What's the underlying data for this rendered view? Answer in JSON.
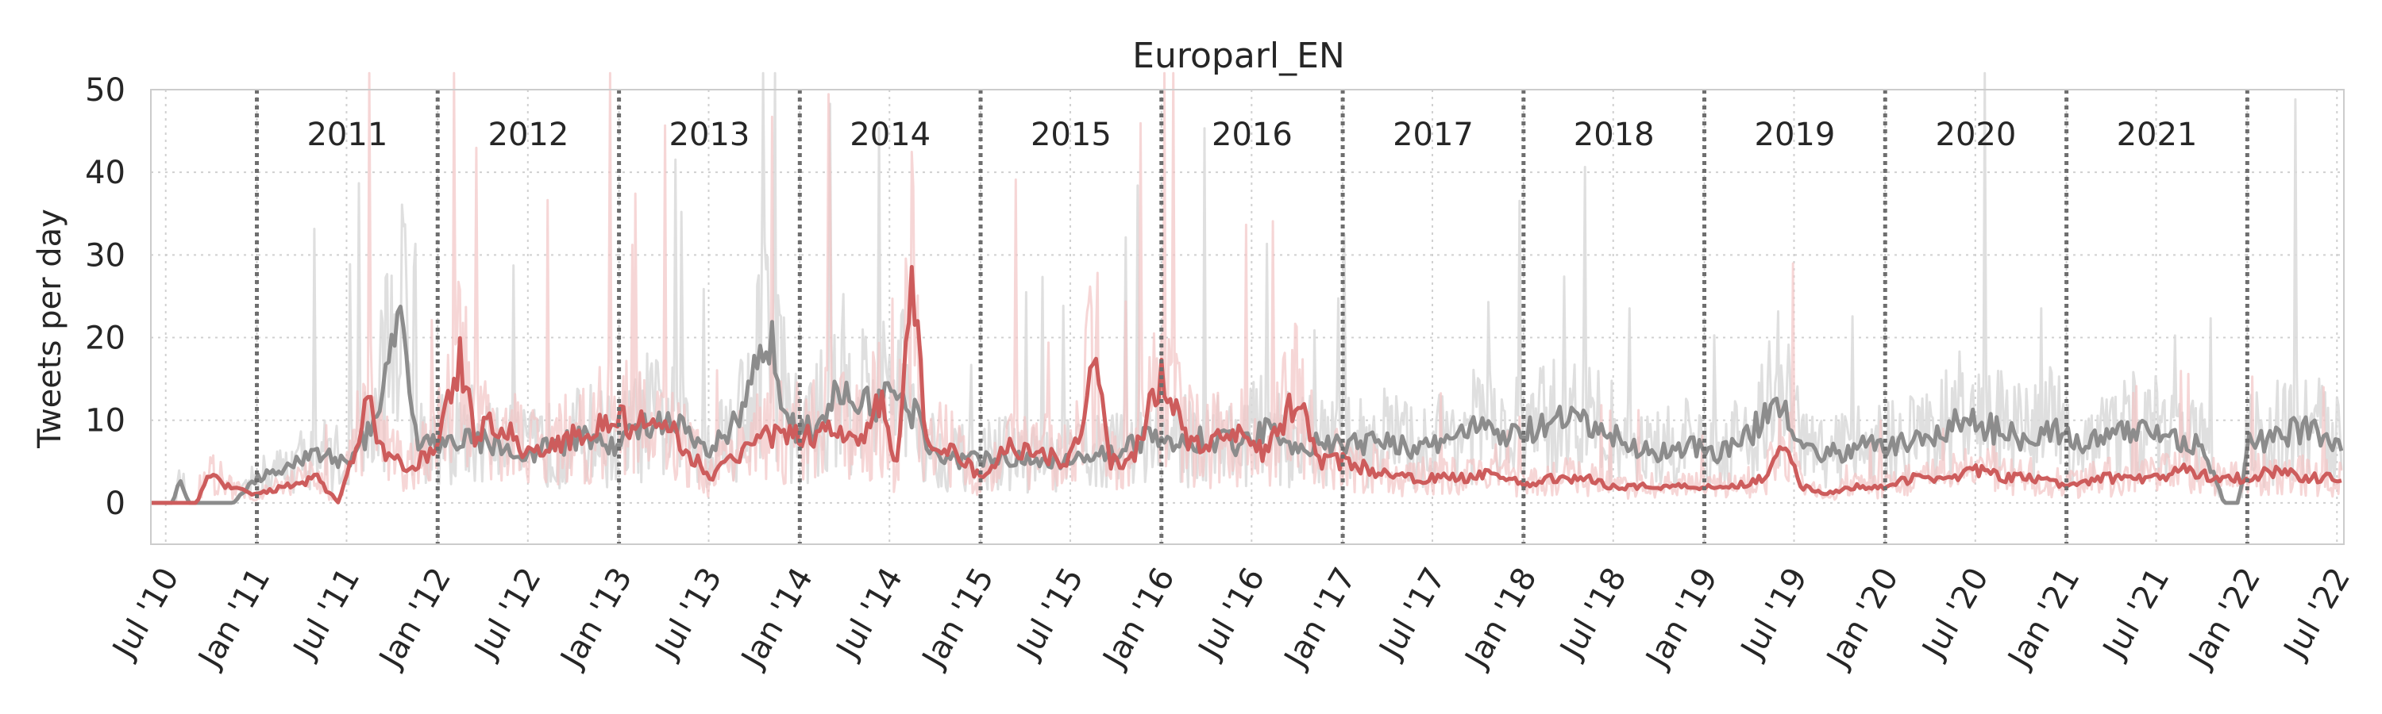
{
  "chart_data": {
    "type": "line",
    "title": "Europarl_EN",
    "ylabel": "Tweets per day",
    "xlabel": "",
    "x_range": [
      "2010-06-01",
      "2022-07-15"
    ],
    "ylim": [
      -5,
      50
    ],
    "yticks": [
      0,
      10,
      20,
      30,
      40,
      50
    ],
    "xticks": [
      {
        "date": "2010-07-01",
        "label": "Jul '10"
      },
      {
        "date": "2011-01-01",
        "label": "Jan '11"
      },
      {
        "date": "2011-07-01",
        "label": "Jul '11"
      },
      {
        "date": "2012-01-01",
        "label": "Jan '12"
      },
      {
        "date": "2012-07-01",
        "label": "Jul '12"
      },
      {
        "date": "2013-01-01",
        "label": "Jan '13"
      },
      {
        "date": "2013-07-01",
        "label": "Jul '13"
      },
      {
        "date": "2014-01-01",
        "label": "Jan '14"
      },
      {
        "date": "2014-07-01",
        "label": "Jul '14"
      },
      {
        "date": "2015-01-01",
        "label": "Jan '15"
      },
      {
        "date": "2015-07-01",
        "label": "Jul '15"
      },
      {
        "date": "2016-01-01",
        "label": "Jan '16"
      },
      {
        "date": "2016-07-01",
        "label": "Jul '16"
      },
      {
        "date": "2017-01-01",
        "label": "Jan '17"
      },
      {
        "date": "2017-07-01",
        "label": "Jul '17"
      },
      {
        "date": "2018-01-01",
        "label": "Jan '18"
      },
      {
        "date": "2018-07-01",
        "label": "Jul '18"
      },
      {
        "date": "2019-01-01",
        "label": "Jan '19"
      },
      {
        "date": "2019-07-01",
        "label": "Jul '19"
      },
      {
        "date": "2020-01-01",
        "label": "Jan '20"
      },
      {
        "date": "2020-07-01",
        "label": "Jul '20"
      },
      {
        "date": "2021-01-01",
        "label": "Jan '21"
      },
      {
        "date": "2021-07-01",
        "label": "Jul '21"
      },
      {
        "date": "2022-01-01",
        "label": "Jan '22"
      },
      {
        "date": "2022-07-01",
        "label": "Jul '22"
      }
    ],
    "year_dividers": [
      "2011-01-01",
      "2012-01-01",
      "2013-01-01",
      "2014-01-01",
      "2015-01-01",
      "2016-01-01",
      "2017-01-01",
      "2018-01-01",
      "2019-01-01",
      "2020-01-01",
      "2021-01-01",
      "2022-01-01"
    ],
    "year_labels": [
      "2011",
      "2012",
      "2013",
      "2014",
      "2015",
      "2016",
      "2017",
      "2018",
      "2019",
      "2020",
      "2021"
    ],
    "grid": true,
    "series": [
      {
        "color": "#8c8c8c",
        "raw_color": "#d9d9d9",
        "smoothed": [
          [
            "2010-06-01",
            0
          ],
          [
            "2010-07-15",
            0
          ],
          [
            "2010-08-01",
            3
          ],
          [
            "2010-08-15",
            0
          ],
          [
            "2010-11-15",
            0
          ],
          [
            "2011-01-01",
            3
          ],
          [
            "2011-03-01",
            4
          ],
          [
            "2011-05-01",
            6
          ],
          [
            "2011-07-01",
            5
          ],
          [
            "2011-09-01",
            10
          ],
          [
            "2011-10-15",
            26
          ],
          [
            "2011-11-15",
            8
          ],
          [
            "2012-01-01",
            7
          ],
          [
            "2012-03-01",
            8
          ],
          [
            "2012-05-01",
            7
          ],
          [
            "2012-07-01",
            6
          ],
          [
            "2012-09-01",
            7
          ],
          [
            "2012-11-01",
            8
          ],
          [
            "2013-01-01",
            7
          ],
          [
            "2013-03-01",
            10
          ],
          [
            "2013-05-01",
            9
          ],
          [
            "2013-07-01",
            6
          ],
          [
            "2013-09-01",
            10
          ],
          [
            "2013-11-01",
            20
          ],
          [
            "2013-12-15",
            9
          ],
          [
            "2014-02-01",
            9
          ],
          [
            "2014-04-01",
            14
          ],
          [
            "2014-06-01",
            12
          ],
          [
            "2014-08-01",
            13
          ],
          [
            "2014-10-01",
            6
          ],
          [
            "2014-12-01",
            5
          ],
          [
            "2015-02-01",
            6
          ],
          [
            "2015-04-01",
            5
          ],
          [
            "2015-06-01",
            5
          ],
          [
            "2015-08-01",
            6
          ],
          [
            "2015-10-01",
            6
          ],
          [
            "2015-12-01",
            8
          ],
          [
            "2016-02-01",
            7
          ],
          [
            "2016-04-01",
            8
          ],
          [
            "2016-06-01",
            7
          ],
          [
            "2016-08-01",
            9
          ],
          [
            "2016-10-01",
            7
          ],
          [
            "2016-12-01",
            7
          ],
          [
            "2017-02-01",
            7
          ],
          [
            "2017-04-01",
            8
          ],
          [
            "2017-06-01",
            6
          ],
          [
            "2017-08-01",
            8
          ],
          [
            "2017-10-01",
            9
          ],
          [
            "2017-12-01",
            8
          ],
          [
            "2018-02-01",
            9
          ],
          [
            "2018-04-01",
            10
          ],
          [
            "2018-06-01",
            9
          ],
          [
            "2018-08-01",
            7
          ],
          [
            "2018-10-01",
            6
          ],
          [
            "2018-12-01",
            7
          ],
          [
            "2019-02-01",
            6
          ],
          [
            "2019-04-01",
            8
          ],
          [
            "2019-06-01",
            13
          ],
          [
            "2019-08-01",
            6
          ],
          [
            "2019-10-01",
            6
          ],
          [
            "2019-12-01",
            7
          ],
          [
            "2020-02-01",
            7
          ],
          [
            "2020-04-01",
            8
          ],
          [
            "2020-06-01",
            10
          ],
          [
            "2020-08-01",
            9
          ],
          [
            "2020-10-01",
            8
          ],
          [
            "2020-12-01",
            9
          ],
          [
            "2021-02-01",
            7
          ],
          [
            "2021-04-01",
            8
          ],
          [
            "2021-06-01",
            9
          ],
          [
            "2021-08-01",
            8
          ],
          [
            "2021-10-01",
            7
          ],
          [
            "2021-11-15",
            0
          ],
          [
            "2021-12-15",
            0
          ],
          [
            "2022-01-01",
            7
          ],
          [
            "2022-03-01",
            8
          ],
          [
            "2022-05-01",
            9
          ],
          [
            "2022-07-10",
            7
          ]
        ]
      },
      {
        "color": "#cd5c5c",
        "raw_color": "#f2c4c4",
        "smoothed": [
          [
            "2010-06-01",
            0
          ],
          [
            "2010-09-01",
            0
          ],
          [
            "2010-10-01",
            4
          ],
          [
            "2010-11-01",
            2
          ],
          [
            "2011-01-01",
            1
          ],
          [
            "2011-03-01",
            2
          ],
          [
            "2011-05-01",
            3
          ],
          [
            "2011-06-15",
            0
          ],
          [
            "2011-07-15",
            6
          ],
          [
            "2011-08-15",
            12
          ],
          [
            "2011-09-15",
            6
          ],
          [
            "2011-11-01",
            4
          ],
          [
            "2012-01-01",
            7
          ],
          [
            "2012-02-15",
            18
          ],
          [
            "2012-03-15",
            8
          ],
          [
            "2012-05-01",
            10
          ],
          [
            "2012-07-01",
            6
          ],
          [
            "2012-09-01",
            7
          ],
          [
            "2012-11-01",
            9
          ],
          [
            "2013-01-01",
            10
          ],
          [
            "2013-03-01",
            9
          ],
          [
            "2013-05-01",
            8
          ],
          [
            "2013-07-01",
            3
          ],
          [
            "2013-09-01",
            6
          ],
          [
            "2013-11-01",
            8
          ],
          [
            "2014-01-01",
            8
          ],
          [
            "2014-03-01",
            9
          ],
          [
            "2014-05-01",
            8
          ],
          [
            "2014-06-15",
            12
          ],
          [
            "2014-07-15",
            4
          ],
          [
            "2014-08-15",
            28
          ],
          [
            "2014-09-15",
            6
          ],
          [
            "2014-11-01",
            7
          ],
          [
            "2015-01-01",
            3
          ],
          [
            "2015-03-01",
            7
          ],
          [
            "2015-05-01",
            6
          ],
          [
            "2015-07-01",
            5
          ],
          [
            "2015-08-20",
            17
          ],
          [
            "2015-09-20",
            5
          ],
          [
            "2015-11-01",
            5
          ],
          [
            "2016-01-01",
            16
          ],
          [
            "2016-02-15",
            8
          ],
          [
            "2016-04-01",
            7
          ],
          [
            "2016-06-01",
            8
          ],
          [
            "2016-08-01",
            6
          ],
          [
            "2016-10-01",
            13
          ],
          [
            "2016-11-15",
            5
          ],
          [
            "2017-01-01",
            5
          ],
          [
            "2017-03-01",
            4
          ],
          [
            "2017-05-01",
            3
          ],
          [
            "2017-07-01",
            3
          ],
          [
            "2017-09-01",
            3
          ],
          [
            "2017-11-01",
            4
          ],
          [
            "2018-01-01",
            2
          ],
          [
            "2018-03-01",
            3
          ],
          [
            "2018-05-01",
            3
          ],
          [
            "2018-07-01",
            2
          ],
          [
            "2018-09-01",
            2
          ],
          [
            "2018-11-01",
            2
          ],
          [
            "2019-01-01",
            2
          ],
          [
            "2019-03-01",
            2
          ],
          [
            "2019-05-01",
            3
          ],
          [
            "2019-06-15",
            8
          ],
          [
            "2019-07-15",
            2
          ],
          [
            "2019-09-01",
            1
          ],
          [
            "2019-11-01",
            2
          ],
          [
            "2020-01-01",
            2
          ],
          [
            "2020-03-01",
            3
          ],
          [
            "2020-05-01",
            3
          ],
          [
            "2020-07-01",
            4
          ],
          [
            "2020-09-01",
            3
          ],
          [
            "2020-11-01",
            3
          ],
          [
            "2021-01-01",
            2
          ],
          [
            "2021-03-01",
            3
          ],
          [
            "2021-05-01",
            3
          ],
          [
            "2021-07-01",
            3
          ],
          [
            "2021-09-01",
            4
          ],
          [
            "2021-11-01",
            3
          ],
          [
            "2022-01-01",
            3
          ],
          [
            "2022-03-01",
            4
          ],
          [
            "2022-05-01",
            3
          ],
          [
            "2022-07-10",
            3
          ]
        ]
      }
    ]
  }
}
